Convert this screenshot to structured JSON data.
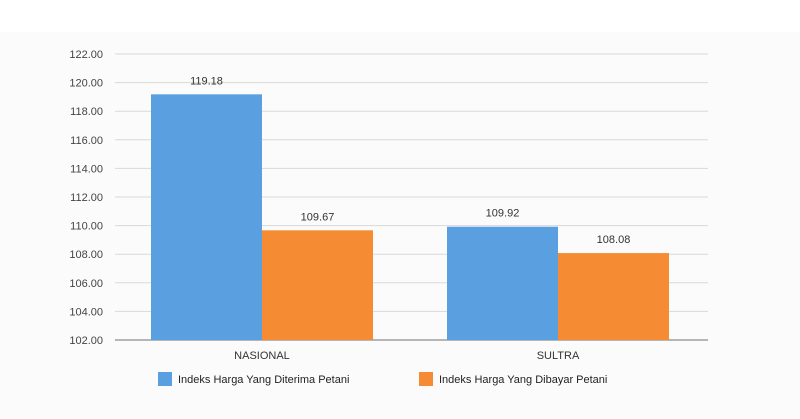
{
  "colors": {
    "series_1": "#5a9fe0",
    "series_2": "#f58b33",
    "grid": "#d9d9d9",
    "axis": "#8c8c8c"
  },
  "chart_data": {
    "type": "bar",
    "categories": [
      "NASIONAL",
      "SULTRA"
    ],
    "series": [
      {
        "name": "Indeks Harga Yang Diterima Petani",
        "values": [
          119.18,
          109.92
        ]
      },
      {
        "name": "Indeks Harga Yang Dibayar Petani",
        "values": [
          109.67,
          108.08
        ]
      }
    ],
    "data_labels": [
      [
        "119.18",
        "109.92"
      ],
      [
        "109.67",
        "108.08"
      ]
    ],
    "y_ticks": [
      "102.00",
      "104.00",
      "106.00",
      "108.00",
      "110.00",
      "112.00",
      "114.00",
      "116.00",
      "118.00",
      "120.00",
      "122.00"
    ],
    "ylim": [
      102,
      122
    ],
    "grid": true,
    "legend_position": "bottom-left",
    "title": "",
    "xlabel": "",
    "ylabel": ""
  }
}
